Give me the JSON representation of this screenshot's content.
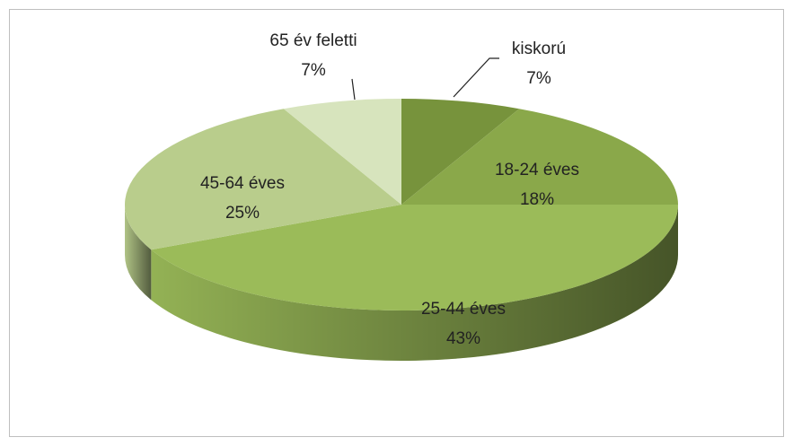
{
  "chart_data": {
    "type": "pie",
    "categories": [
      "kiskorú",
      "18-24 éves",
      "25-44 éves",
      "45-64 éves",
      "65 év feletti"
    ],
    "values": [
      7,
      18,
      43,
      25,
      7
    ],
    "value_labels": [
      "7%",
      "18%",
      "43%",
      "25%",
      "7%"
    ],
    "colors": [
      "#77933c",
      "#8aa84a",
      "#9bbb59",
      "#b9cd8c",
      "#d7e4bd"
    ]
  }
}
